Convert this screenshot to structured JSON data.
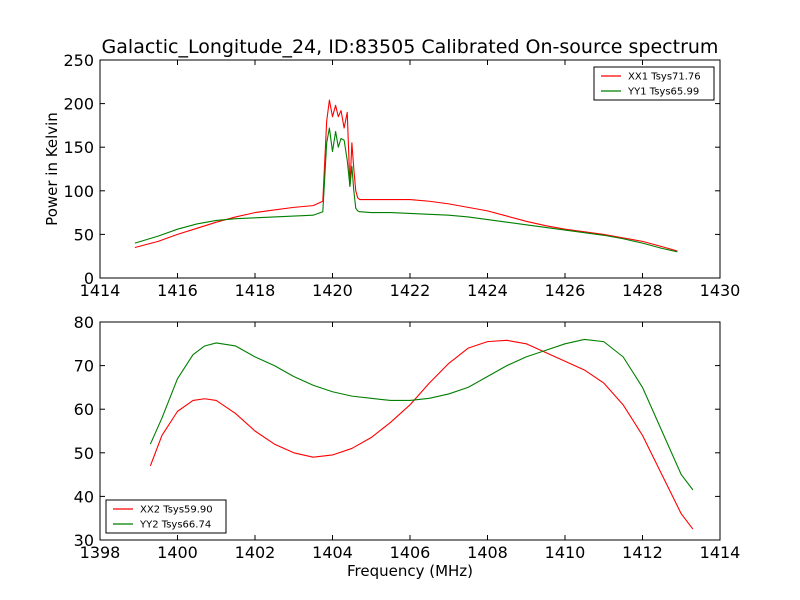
{
  "figure_title": "Galactic_Longitude_24, ID:83505 Calibrated On-source spectrum",
  "colors": {
    "red": "#ff0000",
    "green": "#007f00",
    "axis": "#000000"
  },
  "chart_data": [
    {
      "type": "line",
      "title": "",
      "xlabel": "",
      "ylabel": "Power in Kelvin",
      "xlim": [
        1414,
        1430
      ],
      "ylim": [
        0,
        250
      ],
      "xticks": [
        1414,
        1416,
        1418,
        1420,
        1422,
        1424,
        1426,
        1428,
        1430
      ],
      "yticks": [
        0,
        50,
        100,
        150,
        200,
        250
      ],
      "grid": false,
      "legend": "top-right",
      "series": [
        {
          "name": "XX1 Tsys71.76",
          "color": "#ff0000",
          "x": [
            1414.9,
            1415.5,
            1416.0,
            1416.5,
            1417.0,
            1417.5,
            1418.0,
            1418.5,
            1419.0,
            1419.5,
            1419.75,
            1419.85,
            1419.92,
            1420.0,
            1420.08,
            1420.15,
            1420.22,
            1420.3,
            1420.38,
            1420.45,
            1420.5,
            1420.55,
            1420.6,
            1420.65,
            1420.7,
            1421.0,
            1421.5,
            1422.0,
            1422.5,
            1423.0,
            1423.5,
            1424.0,
            1424.5,
            1425.0,
            1425.5,
            1426.0,
            1426.5,
            1427.0,
            1427.5,
            1428.0,
            1428.5,
            1428.9
          ],
          "values": [
            35,
            42,
            50,
            57,
            64,
            70,
            75,
            78,
            81,
            83,
            88,
            180,
            204,
            185,
            198,
            185,
            192,
            172,
            190,
            105,
            155,
            125,
            100,
            92,
            90,
            90,
            90,
            90,
            88,
            85,
            81,
            77,
            71,
            65,
            60,
            56,
            53,
            50,
            46,
            42,
            36,
            31
          ]
        },
        {
          "name": "YY1 Tsys65.99",
          "color": "#007f00",
          "x": [
            1414.9,
            1415.5,
            1416.0,
            1416.5,
            1417.0,
            1417.5,
            1418.0,
            1418.5,
            1419.0,
            1419.5,
            1419.75,
            1419.85,
            1419.92,
            1420.0,
            1420.08,
            1420.15,
            1420.22,
            1420.3,
            1420.38,
            1420.45,
            1420.5,
            1420.55,
            1420.6,
            1420.65,
            1420.7,
            1421.0,
            1421.5,
            1422.0,
            1422.5,
            1423.0,
            1423.5,
            1424.0,
            1424.5,
            1425.0,
            1425.5,
            1426.0,
            1426.5,
            1427.0,
            1427.5,
            1428.0,
            1428.5,
            1428.9
          ],
          "values": [
            40,
            48,
            56,
            62,
            66,
            68,
            69,
            70,
            71,
            72,
            76,
            155,
            172,
            145,
            168,
            150,
            160,
            158,
            135,
            105,
            128,
            100,
            80,
            77,
            76,
            75,
            75,
            74,
            73,
            72,
            70,
            67,
            64,
            61,
            58,
            55,
            52,
            49,
            45,
            40,
            34,
            30
          ]
        }
      ]
    },
    {
      "type": "line",
      "title": "",
      "xlabel": "Frequency (MHz)",
      "ylabel": "",
      "xlim": [
        1398,
        1414
      ],
      "ylim": [
        30,
        80
      ],
      "xticks": [
        1398,
        1400,
        1402,
        1404,
        1406,
        1408,
        1410,
        1412,
        1414
      ],
      "yticks": [
        30,
        40,
        50,
        60,
        70,
        80
      ],
      "grid": false,
      "legend": "bottom-left",
      "series": [
        {
          "name": "XX2 Tsys59.90",
          "color": "#ff0000",
          "x": [
            1399.3,
            1399.6,
            1400.0,
            1400.4,
            1400.7,
            1401.0,
            1401.5,
            1402.0,
            1402.5,
            1403.0,
            1403.5,
            1404.0,
            1404.5,
            1405.0,
            1405.5,
            1406.0,
            1406.5,
            1407.0,
            1407.5,
            1408.0,
            1408.5,
            1409.0,
            1409.5,
            1410.0,
            1410.5,
            1411.0,
            1411.5,
            1412.0,
            1412.5,
            1413.0,
            1413.3
          ],
          "values": [
            47,
            54,
            59.5,
            62,
            62.4,
            62,
            59,
            55,
            52,
            50,
            49,
            49.5,
            51,
            53.5,
            57,
            61,
            66,
            70.5,
            74,
            75.5,
            75.8,
            75,
            73,
            71,
            69,
            66,
            61,
            54,
            45,
            36,
            32.5
          ]
        },
        {
          "name": "YY2 Tsys66.74",
          "color": "#007f00",
          "x": [
            1399.3,
            1399.6,
            1400.0,
            1400.4,
            1400.7,
            1401.0,
            1401.5,
            1402.0,
            1402.5,
            1403.0,
            1403.5,
            1404.0,
            1404.5,
            1405.0,
            1405.5,
            1406.0,
            1406.5,
            1407.0,
            1407.5,
            1408.0,
            1408.5,
            1409.0,
            1409.5,
            1410.0,
            1410.5,
            1411.0,
            1411.5,
            1412.0,
            1412.5,
            1413.0,
            1413.3
          ],
          "values": [
            52,
            58,
            67,
            72.5,
            74.5,
            75.2,
            74.5,
            72,
            70,
            67.5,
            65.5,
            64,
            63,
            62.5,
            62,
            62,
            62.5,
            63.5,
            65,
            67.5,
            70,
            72,
            73.5,
            75,
            76,
            75.5,
            72,
            65,
            55,
            45,
            41.5
          ]
        }
      ]
    }
  ]
}
